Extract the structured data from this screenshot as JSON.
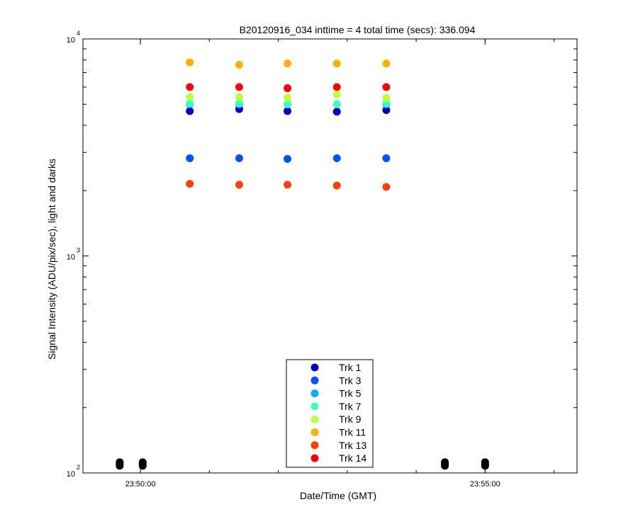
{
  "chart_data": {
    "type": "scatter",
    "title": "B20120916_034 inttime = 4 total time (secs): 336.094",
    "xlabel": "Date/Time (GMT)",
    "ylabel": "Signal Intensity (ADU/pix/sec), light and darks",
    "yscale": "log",
    "ylim": [
      100,
      10000
    ],
    "xlim": [
      "23:49:10",
      "23:56:20"
    ],
    "x_ticks": [
      "23:50:00",
      "23:55:00"
    ],
    "y_ticks": [
      {
        "base": "10",
        "exp": "2",
        "value": 100
      },
      {
        "base": "10",
        "exp": "3",
        "value": 1000
      },
      {
        "base": "10",
        "exp": "4",
        "value": 10000
      }
    ],
    "grid": false,
    "legend_position": "bottom-center",
    "x": [
      "23:50:43",
      "23:51:26",
      "23:52:08",
      "23:52:51",
      "23:53:34"
    ],
    "series": [
      {
        "name": "Trk 1",
        "color": "#0000bf",
        "values": [
          4650,
          4750,
          4650,
          4620,
          4700
        ]
      },
      {
        "name": "Trk 3",
        "color": "#0050ff",
        "values": [
          2820,
          2820,
          2800,
          2820,
          2820
        ]
      },
      {
        "name": "Trk 5",
        "color": "#00b0ff",
        "values": [
          5000,
          5000,
          5000,
          5000,
          5000
        ]
      },
      {
        "name": "Trk 7",
        "color": "#40ffbf",
        "values": [
          5050,
          5050,
          5000,
          5000,
          5050
        ]
      },
      {
        "name": "Trk 9",
        "color": "#bfff40",
        "values": [
          5400,
          5400,
          5350,
          5550,
          5350
        ]
      },
      {
        "name": "Trk 11",
        "color": "#ffb000",
        "values": [
          7800,
          7600,
          7700,
          7700,
          7700
        ]
      },
      {
        "name": "Trk 13",
        "color": "#ff4000",
        "values": [
          2150,
          2130,
          2130,
          2110,
          2080
        ]
      },
      {
        "name": "Trk 14",
        "color": "#ff0000",
        "values": [
          6000,
          6000,
          5930,
          6000,
          6000
        ]
      }
    ],
    "darks": {
      "color": "#000000",
      "x": [
        "23:49:42",
        "23:50:02",
        "23:54:25",
        "23:55:00"
      ],
      "value": 110
    }
  }
}
